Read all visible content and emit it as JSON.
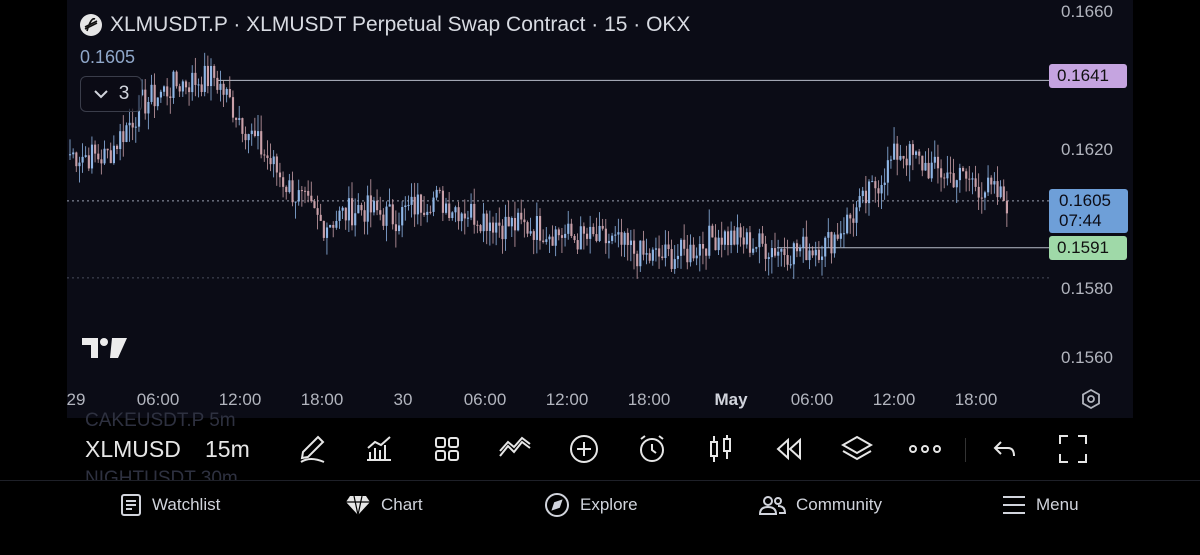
{
  "header": {
    "title": "XLMUSDT.P · XLMUSDT Perpetual Swap Contract · 15 · OKX",
    "ohlc_value": "0.1605",
    "indicator_count": "3"
  },
  "price_axis": {
    "labels": [
      "0.1660",
      "0.1620",
      "0.1580",
      "0.1560"
    ],
    "alert_high": "0.1641",
    "alert_low": "0.1591",
    "current_price": "0.1605",
    "countdown": "07:44"
  },
  "time_axis": {
    "labels": [
      "29",
      "06:00",
      "12:00",
      "18:00",
      "30",
      "06:00",
      "12:00",
      "18:00",
      "May",
      "06:00",
      "12:00",
      "18:00"
    ]
  },
  "colors": {
    "up": "#8fb6e6",
    "down": "#c9a0a8",
    "alert_high": "#c5a4e0",
    "alert_low": "#9fd9a8",
    "current": "#6e9fd8",
    "background": "#0b0c16"
  },
  "toolbar": {
    "symbol": "XLMUSDT.P",
    "interval": "15m",
    "ghost_top": "CAKEUSDT.P 5m",
    "ghost_bottom": "NIGHTUSDT 30m",
    "icons": [
      "pencil-icon",
      "bar-chart-icon",
      "grid-icon",
      "indicator-icon",
      "plus-circle-icon",
      "alarm-icon",
      "candle-icon",
      "replay-icon",
      "layers-icon",
      "more-icon",
      "undo-icon",
      "fullscreen-icon"
    ]
  },
  "nav": {
    "watchlist": "Watchlist",
    "chart": "Chart",
    "explore": "Explore",
    "community": "Community",
    "menu": "Menu"
  },
  "chart_data": {
    "type": "candlestick",
    "x": [
      "Apr 29 00:00",
      "Apr 29 03:00",
      "Apr 29 06:00",
      "Apr 29 09:00",
      "Apr 29 10:30",
      "Apr 29 12:00",
      "Apr 29 15:00",
      "Apr 29 18:00",
      "Apr 29 21:00",
      "Apr 30 00:00",
      "Apr 30 03:00",
      "Apr 30 06:00",
      "Apr 30 09:00",
      "Apr 30 12:00",
      "Apr 30 15:00",
      "Apr 30 18:00",
      "Apr 30 21:00",
      "May 1 00:00",
      "May 1 02:00",
      "May 1 04:00",
      "May 1 06:00",
      "May 1 09:00",
      "May 1 12:00",
      "May 1 14:00",
      "May 1 16:00",
      "May 1 18:00",
      "May 1 19:00"
    ],
    "close": [
      0.1619,
      0.1618,
      0.1634,
      0.164,
      0.1642,
      0.1625,
      0.161,
      0.1598,
      0.1603,
      0.16,
      0.1606,
      0.1602,
      0.1598,
      0.1597,
      0.1594,
      0.1593,
      0.1588,
      0.1589,
      0.1595,
      0.1592,
      0.159,
      0.1592,
      0.1604,
      0.162,
      0.1614,
      0.1611,
      0.1605
    ],
    "ylim": [
      0.155,
      0.1665
    ]
  }
}
